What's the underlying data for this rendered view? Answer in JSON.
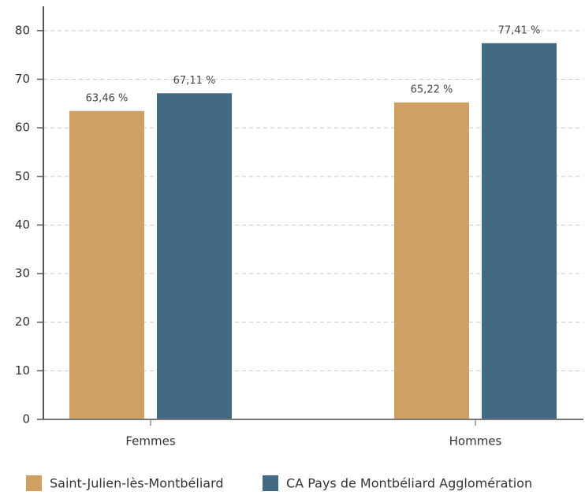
{
  "chart_data": {
    "type": "bar",
    "categories": [
      "Femmes",
      "Hommes"
    ],
    "series": [
      {
        "name": "Saint-Julien-lès-Montbéliard",
        "color": "#cfa063",
        "values": [
          63.46,
          65.22
        ],
        "value_labels": [
          "63,46 %",
          "65,22 %"
        ]
      },
      {
        "name": "CA Pays de Montbéliard Agglomération",
        "color": "#436a84",
        "values": [
          67.11,
          77.41
        ],
        "value_labels": [
          "67,11 %",
          "77,41 %"
        ]
      }
    ],
    "ylim": [
      0,
      85
    ],
    "yticks": [
      0,
      10,
      20,
      30,
      40,
      50,
      60,
      70,
      80
    ],
    "grid": true,
    "legend": "bottom"
  }
}
